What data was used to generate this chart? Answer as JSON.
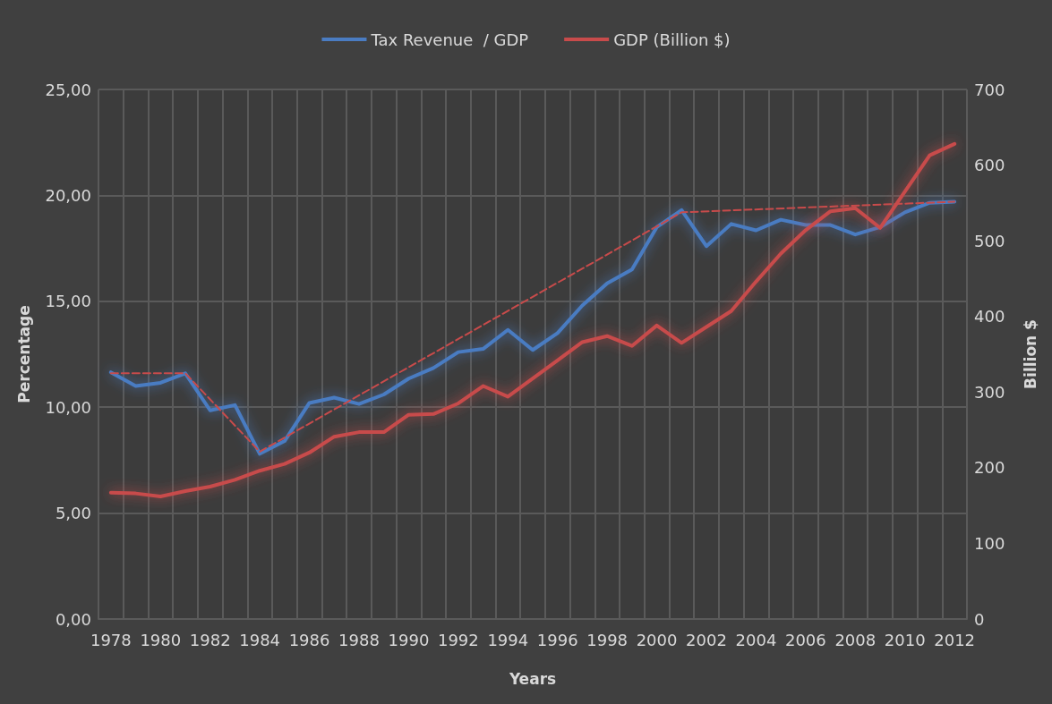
{
  "chart_data": {
    "type": "line",
    "xlabel": "Years",
    "ylabel": "Percentage",
    "y2label": "Billion $",
    "categories": [
      "1978",
      null,
      "1980",
      null,
      "1982",
      null,
      "1984",
      null,
      "1986",
      null,
      "1988",
      null,
      "1990",
      null,
      "1992",
      null,
      "1994",
      null,
      "1996",
      null,
      "1998",
      null,
      "2000",
      null,
      "2002",
      null,
      "2004",
      null,
      "2006",
      null,
      "2008",
      null,
      "2010",
      null,
      "2012"
    ],
    "series": [
      {
        "name": "Tax Revenue  / GDP",
        "color": "#4a7cc2",
        "values": [
          11.65,
          11.0,
          11.15,
          11.6,
          9.85,
          10.1,
          7.8,
          8.4,
          10.2,
          10.45,
          10.15,
          10.6,
          11.35,
          11.85,
          12.6,
          12.75,
          13.65,
          12.7,
          13.5,
          14.8,
          15.85,
          16.5,
          18.5,
          19.3,
          17.6,
          18.65,
          18.35,
          18.85,
          18.6,
          18.6,
          18.15,
          18.5,
          19.2,
          19.65,
          19.7
        ]
      },
      {
        "name": "GDP (Billion $)",
        "color": "#c84b4b",
        "axis": "y2",
        "values": [
          167,
          166,
          162,
          169,
          175,
          184,
          196,
          205,
          220,
          241,
          247,
          247,
          270,
          271,
          285,
          308,
          294,
          318,
          342,
          366,
          374,
          361,
          388,
          365,
          386,
          407,
          446,
          483,
          514,
          539,
          543,
          517,
          565,
          613,
          628
        ]
      },
      {
        "color": "#c84b4b",
        "line_style": "dashed",
        "values": [
          11.6,
          null,
          null,
          11.6,
          null,
          null,
          7.9,
          null,
          null,
          null,
          null,
          null,
          null,
          null,
          null,
          null,
          null,
          null,
          null,
          null,
          null,
          null,
          null,
          19.2,
          null,
          null,
          null,
          null,
          null,
          null,
          null,
          null,
          null,
          null,
          19.7
        ]
      }
    ],
    "ylim": [
      0,
      25
    ],
    "yticks": [
      {
        "value": 0,
        "label": "0,00"
      },
      {
        "value": 5,
        "label": "5,00"
      },
      {
        "value": 10,
        "label": "10,00"
      },
      {
        "value": 15,
        "label": "15,00"
      },
      {
        "value": 20,
        "label": "20,00"
      },
      {
        "value": 25,
        "label": "25,00"
      }
    ],
    "y2lim": [
      0,
      700
    ],
    "y2ticks": [
      0,
      100,
      200,
      300,
      400,
      500,
      600,
      700
    ],
    "grid": true,
    "legend": "top",
    "marker": "none",
    "line_style": "solid"
  }
}
